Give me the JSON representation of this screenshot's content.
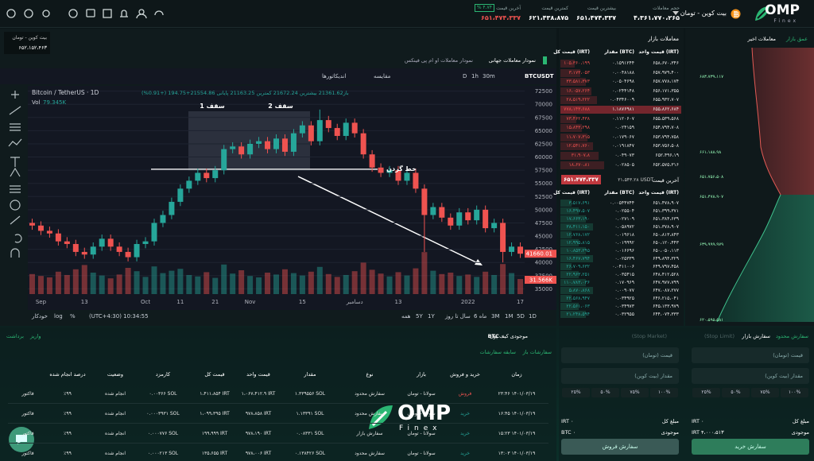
{
  "topbar": {
    "logo": "OMP",
    "logo_sub": "Finex",
    "market": "بیت کوین - تومان",
    "stats": [
      {
        "label": "حجم معاملات",
        "value": "۴،۳۶۱،۷۷۰،۲۶۵"
      },
      {
        "label": "بیشترین قیمت",
        "value": "۶۵۱،۴۷۴،۳۳۷"
      },
      {
        "label": "کمترین قیمت",
        "value": "۶۲۱،۴۳۸،۸۷۵"
      },
      {
        "label": "آخرین قیمت",
        "value": "۶۵۱،۴۷۴،۳۳۷"
      }
    ],
    "change": "% ۴.۷۴"
  },
  "ticker": {
    "market": "بیت کوین - تومان",
    "price": "۶۵۲،۱۵۲،۴۶۳"
  },
  "chart_tabs": [
    "نمودار معاملات جهانی",
    "نمودار معاملات او ام پی فینکس"
  ],
  "toolbar": [
    "BTCUSDT",
    "30m",
    "1h",
    "D",
    "مقایسه",
    "اندیکاتورها"
  ],
  "chart_data": {
    "type": "candlestick",
    "title": "Bitcoin / TetherUS · 1D",
    "ohlc_legend": "باز21361.62 بیشترین 21672.24 کمترین 21163.25 پایانی 21554.86+194.75 (+0.91%)",
    "volume_label": "Vol",
    "volume_value": "79.345K",
    "annotations": [
      "سقف 1",
      "سقف 2",
      "خط گردن"
    ],
    "categories": [
      null,
      "Sep",
      null,
      null,
      null,
      null,
      "13",
      null,
      null,
      null,
      null,
      null,
      null,
      "Oct",
      null,
      null,
      null,
      "11",
      null,
      null,
      null,
      "21",
      null,
      null,
      null,
      "Nov",
      null,
      null,
      null,
      null,
      null,
      "15",
      null,
      null,
      null,
      null,
      null,
      "دسامبر",
      null,
      null,
      null,
      null,
      "13",
      null,
      null,
      null,
      null,
      null,
      null,
      null,
      "2022",
      null,
      null,
      null,
      null,
      null,
      "17"
    ],
    "open": [
      47500,
      47000,
      46000,
      45500,
      44000,
      43500,
      42000,
      41500,
      43000,
      44500,
      43000,
      42000,
      41000,
      43500,
      44000,
      47500,
      49000,
      51500,
      54000,
      55500,
      57000,
      56000,
      57500,
      61500,
      62000,
      60500,
      62500,
      63000,
      61500,
      63500,
      61000,
      64500,
      66000,
      63000,
      67000,
      65500,
      64000,
      66500,
      64500,
      60500,
      58000,
      57000,
      57500,
      55500,
      57000,
      54000,
      49000,
      50500,
      48500,
      47000,
      49500,
      48000,
      50000,
      46500,
      47500,
      42000,
      43000
    ],
    "high": [
      48300,
      47800,
      46800,
      46300,
      44800,
      44300,
      42800,
      43800,
      45300,
      45300,
      43800,
      42800,
      44300,
      44800,
      48300,
      49800,
      52300,
      54800,
      56300,
      57800,
      57800,
      58300,
      62300,
      62800,
      62800,
      63300,
      63800,
      63800,
      64300,
      64300,
      65300,
      66800,
      66800,
      69000,
      67800,
      66300,
      67300,
      67300,
      65300,
      61300,
      58800,
      58300,
      58300,
      57800,
      57800,
      54800,
      51300,
      51300,
      49300,
      50300,
      50300,
      50800,
      50800,
      48300,
      48300,
      43800,
      43800
    ],
    "low": [
      46200,
      45200,
      44700,
      43200,
      42700,
      41200,
      40700,
      40700,
      42200,
      42200,
      41200,
      40200,
      40200,
      42700,
      43200,
      46700,
      48200,
      50700,
      53200,
      54700,
      55200,
      55200,
      56700,
      60700,
      59700,
      59700,
      61700,
      60700,
      60700,
      60200,
      60200,
      63700,
      62200,
      62200,
      64700,
      63200,
      63200,
      63700,
      59700,
      57200,
      56200,
      56200,
      54700,
      54700,
      53200,
      42000,
      48200,
      47700,
      46200,
      46200,
      47200,
      47200,
      45700,
      45700,
      40000,
      41200,
      40860
    ],
    "close": [
      47000,
      46000,
      45500,
      44000,
      43500,
      42000,
      41500,
      43000,
      44500,
      43000,
      42000,
      41000,
      43500,
      44000,
      47500,
      49000,
      51500,
      54000,
      55500,
      57000,
      56000,
      57500,
      61500,
      62000,
      60500,
      62500,
      63000,
      61500,
      63500,
      61000,
      64500,
      66000,
      63000,
      67000,
      65500,
      64000,
      66500,
      64500,
      60500,
      58000,
      57000,
      57500,
      55500,
      57000,
      54000,
      49000,
      50500,
      48500,
      47000,
      49500,
      48000,
      50000,
      46500,
      47500,
      42000,
      43000,
      41660
    ],
    "volume": [
      42000,
      38000,
      35000,
      47000,
      40000,
      52000,
      61000,
      45000,
      39000,
      33000,
      41000,
      55000,
      48000,
      36000,
      58000,
      44000,
      49000,
      53000,
      40000,
      37000,
      46000,
      34000,
      62000,
      43000,
      50000,
      38000,
      35000,
      45000,
      41000,
      52000,
      44000,
      39000,
      47000,
      57000,
      42000,
      36000,
      40000,
      48000,
      66000,
      51000,
      43000,
      37000,
      46000,
      39000,
      54000,
      88000,
      49000,
      42000,
      45000,
      38000,
      41000,
      36000,
      47000,
      40000,
      63000,
      44000,
      31566
    ],
    "ylim": [
      34000,
      73500
    ],
    "yticks": [
      72500,
      70000,
      67500,
      65000,
      62500,
      60000,
      57500,
      55000,
      52500,
      50000,
      47500,
      45000,
      42500,
      40000,
      37500,
      35000
    ],
    "volume_lim": [
      0,
      150000
    ],
    "last_price_label": "41660.01",
    "last_volume_label": "31.566K",
    "colors": {
      "up": "#26a69a",
      "down": "#ef5350"
    }
  },
  "range_bar": {
    "ranges": [
      "1D",
      "5D",
      "1M",
      "3M",
      "6 ماه",
      "سال تا روز",
      "1Y",
      "5Y",
      "همه"
    ],
    "time": "(UTC+4:30) 10:34:55",
    "options": [
      "%",
      "log",
      "خودکار"
    ]
  },
  "orderbook": {
    "title": "معاملات بازار",
    "headers": [
      "قیمت واحد (IRT)",
      "مقدار (BTC)",
      "قیمت کل (IRT)"
    ],
    "sell": [
      [
        "۶۵۸،۶۷۰،۳۴۶",
        "۰.۱۵۹۱۲۴۴",
        "۱۰۵،۳۶۰،۱۹۹"
      ],
      [
        "۶۵۷،۹۷۹،۴۰۰",
        "۰.۰۰۴۸۱۸۸",
        "۳،۱۷۳،۰۵۳"
      ],
      [
        "۶۵۷،۷۷۸،۱۷۴",
        "۰.۰۵۰۴۶۹۸",
        "۳۳،۵۸۱،۳۷۳"
      ],
      [
        "۶۵۶،۱۷۱،۳۵۵",
        "۰.۰۲۴۴۱۴۸",
        "۱۶،۰۵۷،۲۶۴"
      ],
      [
        "۶۵۵،۹۳۲،۷۰۷",
        "۰.۰۴۳۴۶۰۰۹",
        "۲۸،۵۱۹،۲۲۲"
      ],
      [
        "۶۵۵،۸۶۲،۶۸۴",
        "۱.۱۸۷۶۹۸۱",
        "۷۷۸،۱۴۳،۶۸۸"
      ],
      [
        "۶۵۵،۵۳۹،۵۶۸",
        "۰.۱۱۲۰۶۰۷",
        "۷۳،۴۶۲،۴۳۸"
      ],
      [
        "۶۵۴،۷۹۴،۷۰۸",
        "۰.۰۲۴۱۵۹",
        "۱۵،۸۴۳،۲۹۸"
      ],
      [
        "۶۵۳،۷۹۴،۷۵۸",
        "۰.۰۱۷۹۰۶۷",
        "۱۱،۷۰۷،۳۱۵"
      ],
      [
        "۶۵۳،۷۵۶،۵۰۸",
        "۰.۰۱۹۱۸۴۷",
        "۱۲،۵۴۱،۷۶۰"
      ],
      [
        "۶۵۲،۴۹۶،۱۹",
        "۰.۰۴۹۰۷۳",
        "۳۱،۹۰۷،۸"
      ],
      [
        "۶۵۲،۵۷۵،۳۱۶",
        "۰.۰۲۸۵۰۵",
        "۱۸،۶۷۰،۸۱"
      ]
    ],
    "last_label": "آخرین قیمت",
    "last_usdt": "۲۱،۵۴۳.۲۸ USDT",
    "last_price": "۶۵۱،۴۷۴،۳۳۷",
    "buy": [
      [
        "۶۵۱،۴۷۸،۹۰۷",
        "۰.۰۰۵۴۴۷۴۴",
        "۳،۵۱۷،۶۹۱"
      ],
      [
        "۶۵۱،۳۹۹،۳۷۱",
        "۰.۰۲۵۵۰۴",
        "۱۶،۴۹۷،۵۰۷"
      ],
      [
        "۶۵۱،۳۸۴،۶۳۹",
        "۰.۰۲۷۱۰۹",
        "۱۷،۶۶۳،۱۹۰"
      ],
      [
        "۶۵۱،۳۷۸،۹۰۷",
        "۰.۰۵۸۹۷۲",
        "۳۸،۴۱۱،۱۵۰"
      ],
      [
        "۶۵۰،۸۱۳،۸۴۳",
        "۰.۰۱۹۶۱۸",
        "۱۲،۷۶۸،۱۷۲"
      ],
      [
        "۶۵۰،۱۲۰،۴۴۳",
        "۰.۰۱۹۹۹۲",
        "۱۲،۹۹۵،۸۱۵"
      ],
      [
        "۶۵۰،۰۵۰،۱۱۳",
        "۰.۰۱۶۶۹۶",
        "۱۰،۸۵۳،۲۹۵"
      ],
      [
        "۶۴۹،۸۹۴،۳۲۹",
        "۰.۰۲۵۳۳۹",
        "۱۶،۴۶۷،۷۹۴"
      ],
      [
        "۶۴۹،۷۹۷،۴۵۸",
        "۰.۰۴۱۱۰۰۶",
        "۲۶،۷۰۹،۶۳۲"
      ],
      [
        "۶۴۸،۴۱۲،۵۲۸",
        "۰.۰۳۵۴۱۵",
        "۲۲،۹۶۳،۲۵۱"
      ],
      [
        "۶۴۷،۹۷۷،۷۹۹",
        "۰.۱۷۰۹۶۹",
        "۱۱۰،۷۸۳،۰۳۶"
      ],
      [
        "۶۴۷،۰۸۷،۲۷۷",
        "۰.۰۰۹۰۷۷",
        "۵،۸۷۰،۸۶۸"
      ],
      [
        "۶۴۶،۲۱۵،۰۴۱",
        "۰.۰۳۴۹۲۵",
        "۲۲،۵۶۸،۹۴۷"
      ],
      [
        "۶۴۵،۱۳۳،۹۷۹",
        "۰.۰۳۴۹۷۳",
        "۲۲،۵۶۱،۰۶۳"
      ],
      [
        "۶۴۴،۰۷۴،۳۳۳",
        "۰.۰۳۲۹۵۵",
        "۲۱،۲۴۸،۵۹۴"
      ]
    ]
  },
  "depth": {
    "tabs": [
      "عمق بازار",
      "معاملات اخیر"
    ],
    "labels": [
      "۶۸۳،۷۳۹،۱۱۷",
      "۶۶۱،۱۸۸،۹۸",
      "۶۵۱،۷۵۶،۵۰۸",
      "۶۵۱،۴۷۸،۹۰۷",
      "۶۳۹،۹۹۹،۹۷۹",
      "۶۲۰،۵۹۵،۵۸۱"
    ]
  },
  "wallet": {
    "title": "موجودی کیف پول",
    "balance": "BTC ۰",
    "deposit": "واریز",
    "withdraw": "برداشت",
    "tabs": [
      "سفارشات باز",
      "سابقه سفارشات"
    ],
    "headers": [
      "زمان",
      "خرید و فروش",
      "بازار",
      "نوع",
      "مقدار",
      "قیمت واحد",
      "قیمت کل",
      "کارمزد",
      "وضعیت",
      "درصد انجام شده"
    ],
    "rows": [
      [
        "۲۳:۴۶ ۱۴۰۱/۰۳/۱۹",
        "فروش",
        "سولانا - تومان",
        "سفارش محدود",
        "۱.۳۳۹۵۵۶ SOL",
        "۱،۰۶۷،۴۱۲.۹ IRT",
        "۱،۴۱۱،۸۵۴ IRT",
        "۰.۰۰۳۶۶ SOL",
        "انجام شده",
        "٪۹۹",
        "فاکتور"
      ],
      [
        "۱۶:۴۵ ۱۴۰۱/۰۳/۱۹",
        "خرید",
        "سولانا - تومان",
        "سفارش محدود",
        "۱.۱۳۳۹۱ SOL",
        "۹۷۸،۸۵۸ IRT",
        "۱،۰۹۹،۳۹۵ IRT",
        "۰.۰۰۰۳۹۳۱ SOL",
        "انجام شده",
        "٪۹۹",
        "فاکتور"
      ],
      [
        "۱۵:۲۳ ۱۴۰۱/۰۳/۱۹",
        "خرید",
        "سولانا - تومان",
        "سفارش بازار",
        "۰.۰۸۳۳۱ SOL",
        "۹۷۸،۱۹۰ IRT",
        "۱۹۹،۹۹۹ IRT",
        "۰.۰۰۰۷۷۶ SOL",
        "انجام شده",
        "٪۹۹",
        "فاکتور"
      ],
      [
        "۱۳:۰۳ ۱۴۰۱/۰۳/۱۹",
        "خرید",
        "سولانا - تومان",
        "سفارش محدود",
        "۰.۱۳۸۴۲۶ SOL",
        "۹۷۸،۰۰۶ IRT",
        "۱۳۵،۶۵۵ IRT",
        "۰.۰۰۰۲۱۳ SOL",
        "انجام شده",
        "٪۹۹",
        "فاکتور"
      ]
    ]
  },
  "watermark": {
    "logo": "OMP",
    "sub": "Finex"
  },
  "trade": {
    "tabs": [
      "سفارش محدود",
      "سفارش بازار",
      "(Stop Limit)",
      "(Stop Market)"
    ],
    "buy": {
      "price": "قیمت (تومان)",
      "amount": "مقدار (بیت کوین)",
      "percents": [
        "۱۰۰%",
        "۷۵%",
        "۵۰%",
        "۲۵%"
      ],
      "total_label": "مبلغ کل",
      "total": "IRT ۰",
      "balance_label": "موجودی",
      "balance": "IRT ۴،۰۰۰،۵۱۳",
      "button": "سفارش خرید"
    },
    "sell": {
      "price": "قیمت (تومان)",
      "amount": "مقدار (بیت کوین)",
      "percents": [
        "۱۰۰%",
        "۷۵%",
        "۵۰%",
        "۲۵%"
      ],
      "total_label": "مبلغ کل",
      "total": "IRT ۰",
      "balance_label": "موجودی",
      "balance": "BTC ۰",
      "button": "سفارش فروش"
    }
  }
}
